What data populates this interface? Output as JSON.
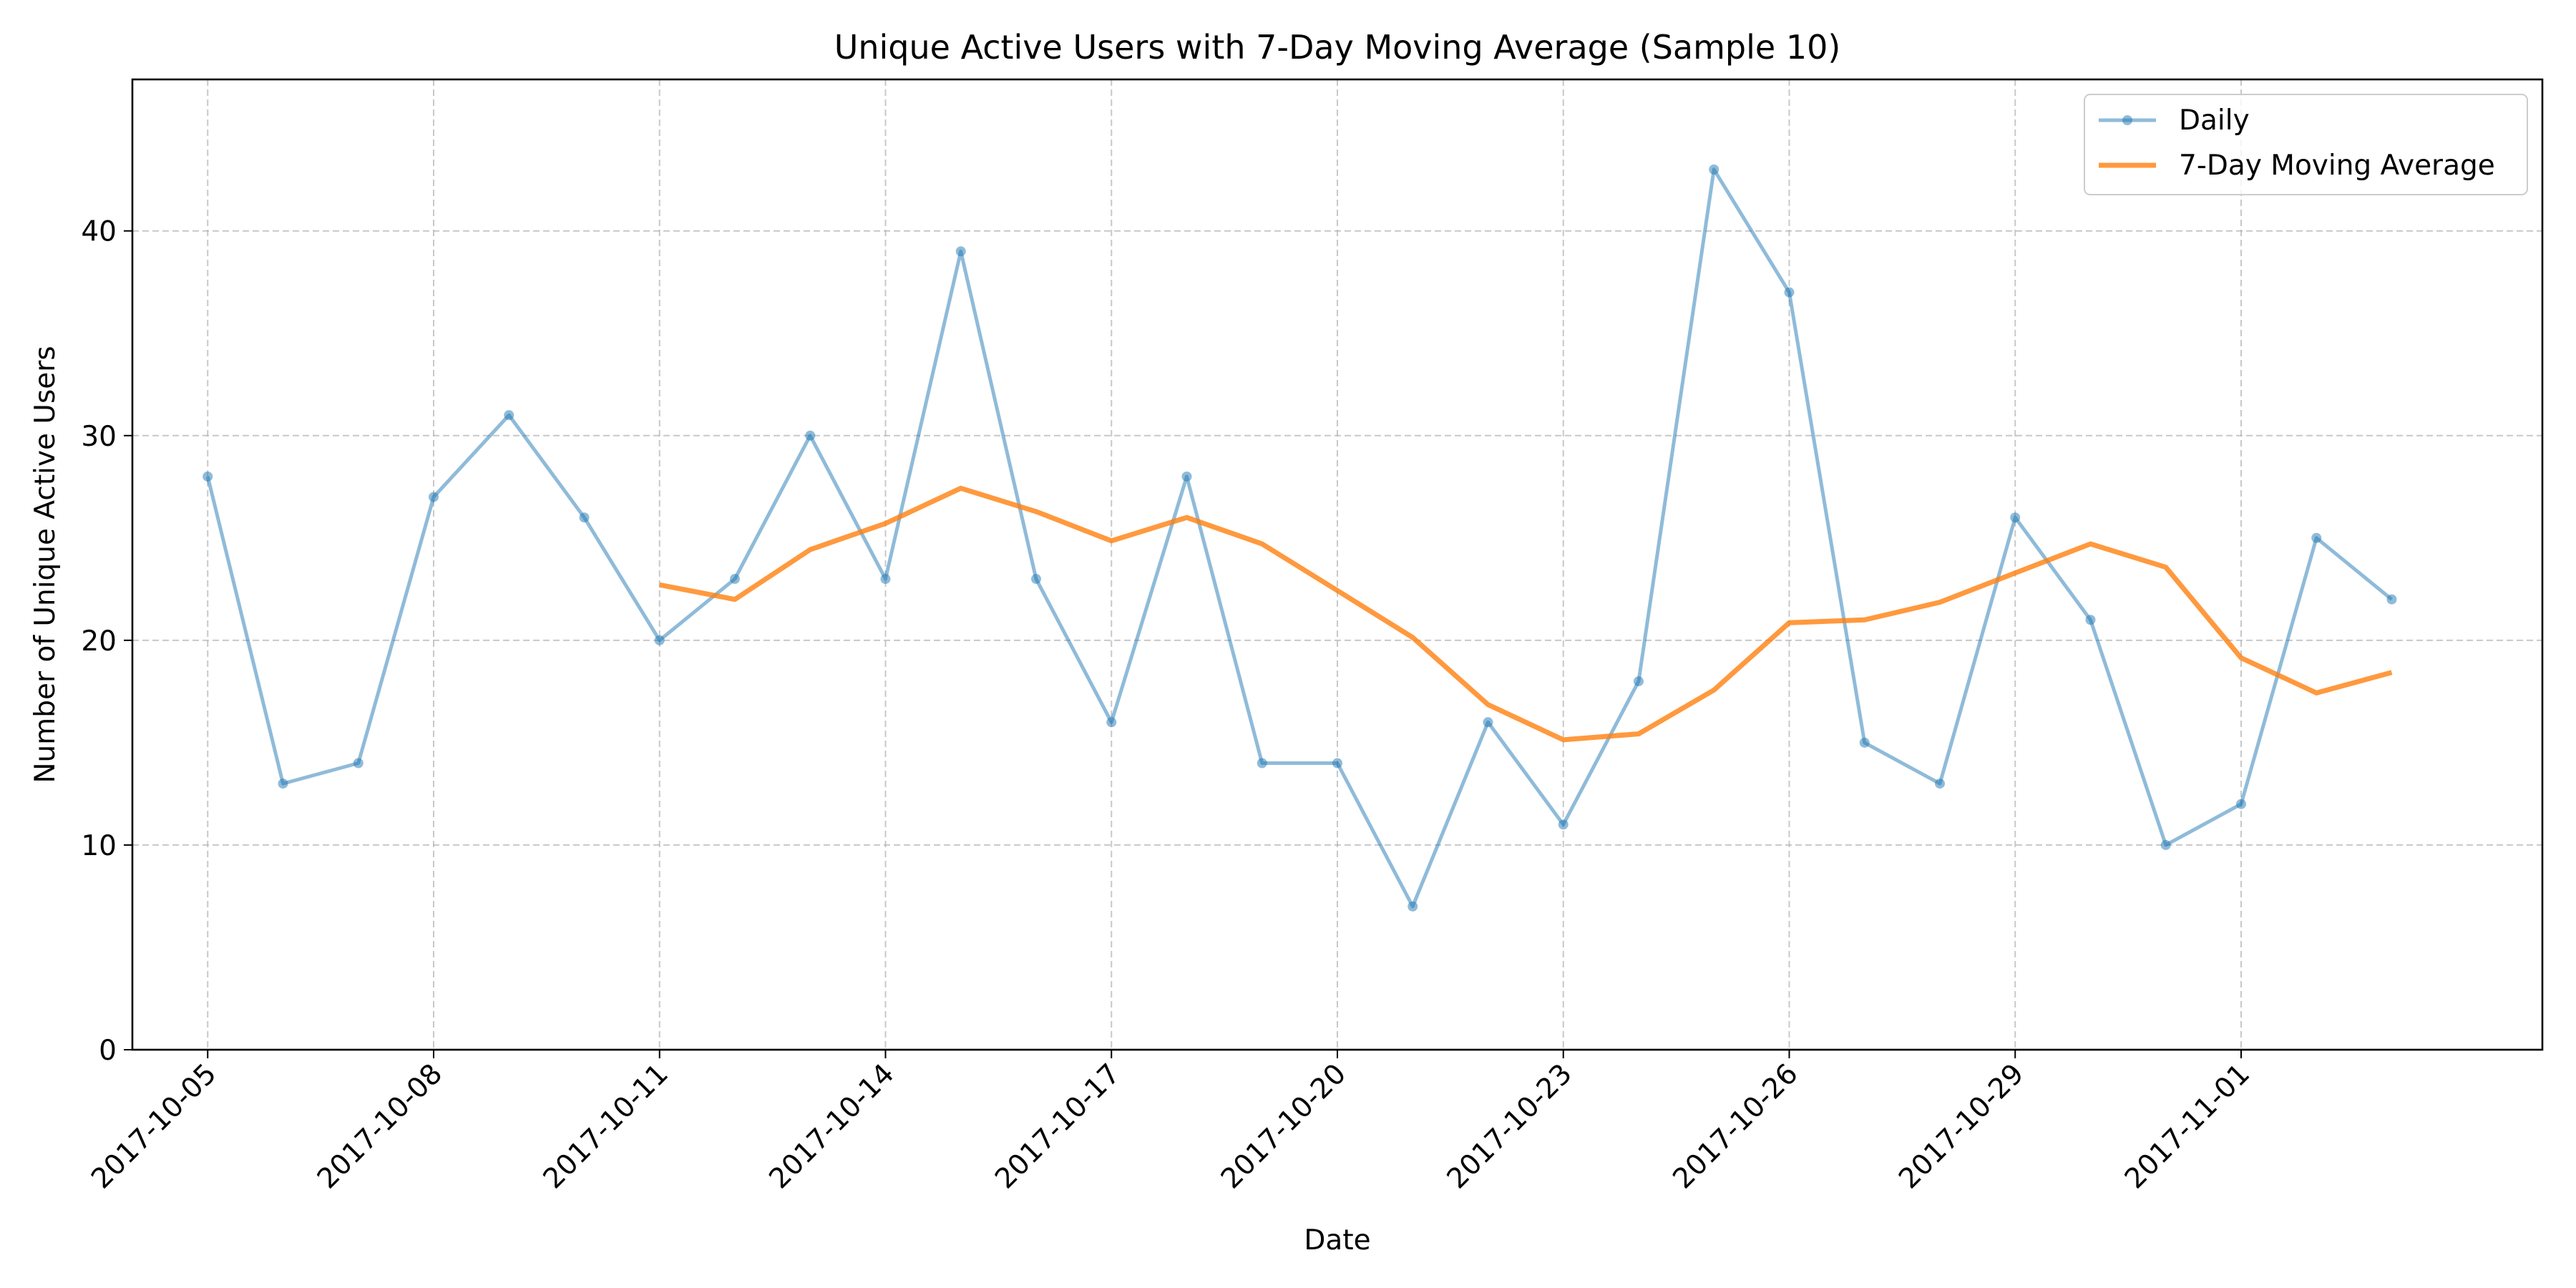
{
  "chart_data": {
    "type": "line",
    "title": "Unique Active Users with 7-Day Moving Average (Sample 10)",
    "xlabel": "Date",
    "ylabel": "Number of Unique Active Users",
    "x_tick_labels": [
      "2017-10-05",
      "2017-10-08",
      "2017-10-11",
      "2017-10-14",
      "2017-10-17",
      "2017-10-20",
      "2017-10-23",
      "2017-10-26",
      "2017-10-29",
      "2017-11-01"
    ],
    "x_range": [
      "2017-10-04",
      "2017-11-05"
    ],
    "y_ticks": [
      0,
      10,
      20,
      30,
      40
    ],
    "ylim": [
      0,
      47.4
    ],
    "grid": true,
    "legend_position": "top-right",
    "x": [
      "2017-10-05",
      "2017-10-06",
      "2017-10-07",
      "2017-10-08",
      "2017-10-09",
      "2017-10-10",
      "2017-10-11",
      "2017-10-12",
      "2017-10-13",
      "2017-10-14",
      "2017-10-15",
      "2017-10-16",
      "2017-10-17",
      "2017-10-18",
      "2017-10-19",
      "2017-10-20",
      "2017-10-21",
      "2017-10-22",
      "2017-10-23",
      "2017-10-24",
      "2017-10-25",
      "2017-10-26",
      "2017-10-27",
      "2017-10-28",
      "2017-10-29",
      "2017-10-30",
      "2017-10-31",
      "2017-11-01",
      "2017-11-02",
      "2017-11-03"
    ],
    "series": [
      {
        "name": "Daily",
        "color": "#1f77b4",
        "values": [
          28,
          13,
          14,
          27,
          31,
          26,
          20,
          23,
          30,
          23,
          39,
          23,
          16,
          28,
          14,
          14,
          7,
          16,
          11,
          18,
          43,
          37,
          15,
          13,
          26,
          21,
          10,
          12,
          25,
          22
        ]
      },
      {
        "name": "7-Day Moving Average",
        "color": "#ff7f0e",
        "values": [
          null,
          null,
          null,
          null,
          null,
          null,
          22.71,
          22.0,
          24.43,
          25.71,
          27.43,
          26.29,
          24.86,
          26.0,
          24.71,
          22.43,
          20.14,
          16.86,
          15.14,
          15.43,
          17.57,
          20.86,
          21.0,
          21.86,
          23.29,
          24.71,
          23.57,
          19.14,
          17.43,
          18.43
        ]
      }
    ]
  }
}
